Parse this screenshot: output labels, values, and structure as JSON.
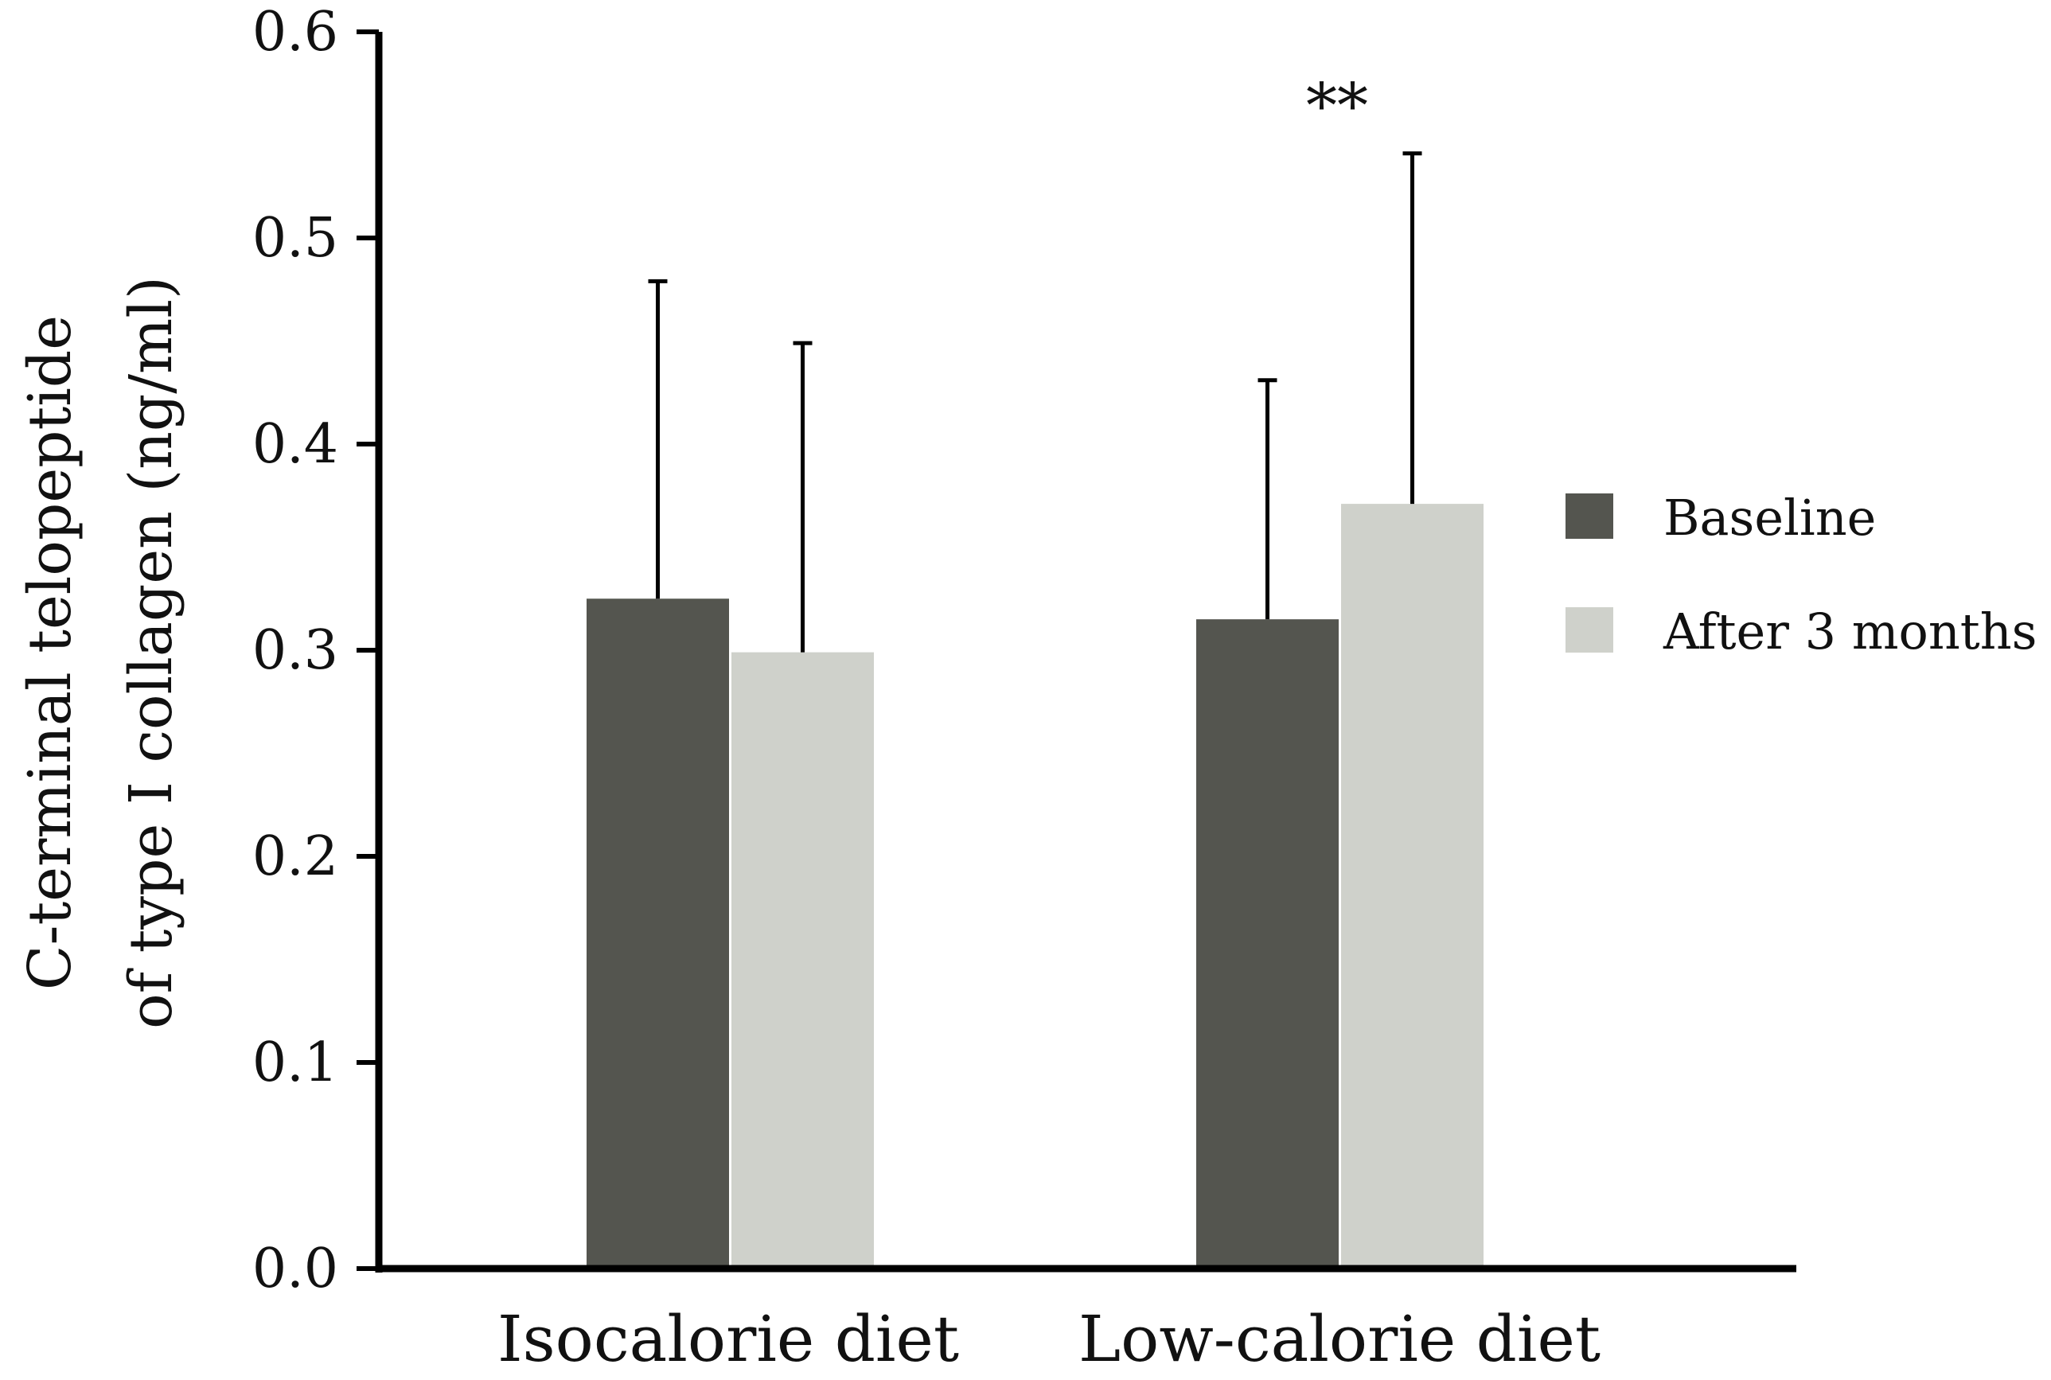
{
  "chart_data": {
    "type": "bar",
    "title": "",
    "xlabel": "",
    "ylabel_lines": [
      "C-terminal telopeptide",
      "of type I collagen (ng/ml)"
    ],
    "ylim": [
      0,
      0.6
    ],
    "yticks": [
      "0.0",
      "0.1",
      "0.2",
      "0.3",
      "0.4",
      "0.5",
      "0.6"
    ],
    "categories": [
      "Isocalorie diet",
      "Low-calorie diet"
    ],
    "series": [
      {
        "name": "Baseline",
        "color": "#54554f",
        "values": [
          0.325,
          0.315
        ],
        "errors": [
          0.154,
          0.116
        ]
      },
      {
        "name": "After 3 months",
        "color": "#cfd1cb",
        "values": [
          0.299,
          0.371
        ],
        "errors": [
          0.15,
          0.17
        ]
      }
    ],
    "annotations": [
      {
        "text": "**",
        "category": "Low-calorie diet"
      }
    ],
    "legend_position": "right",
    "grid": false
  }
}
